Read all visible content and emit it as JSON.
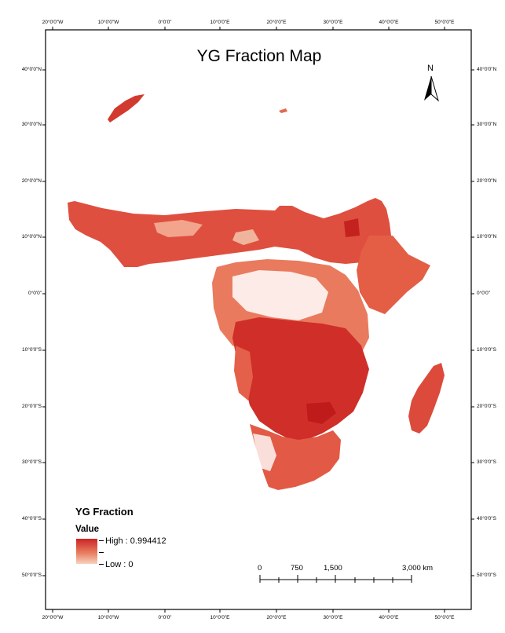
{
  "map": {
    "title": "YG Fraction Map",
    "north_label": "N",
    "top_ticks": [
      "20°0'0\"W",
      "10°0'0\"W",
      "0°0'0\"",
      "10°0'0\"E",
      "20°0'0\"E",
      "30°0'0\"E",
      "40°0'0\"E",
      "50°0'0\"E"
    ],
    "bottom_ticks": [
      "20°0'0\"W",
      "10°0'0\"W",
      "0°0'0\"",
      "10°0'0\"E",
      "20°0'0\"E",
      "30°0'0\"E",
      "40°0'0\"E",
      "50°0'0\"E"
    ],
    "left_ticks": [
      "40°0'0\"N",
      "30°0'0\"N",
      "20°0'0\"N",
      "10°0'0\"N",
      "0°0'0\"",
      "10°0'0\"S",
      "20°0'0\"S",
      "30°0'0\"S",
      "40°0'0\"S",
      "50°0'0\"S"
    ],
    "right_ticks": [
      "40°0'0\"N",
      "30°0'0\"N",
      "20°0'0\"N",
      "10°0'0\"N",
      "0°0'0\"",
      "10°0'0\"S",
      "20°0'0\"S",
      "30°0'0\"S",
      "40°0'0\"S",
      "50°0'0\"S"
    ]
  },
  "legend": {
    "title": "YG Fraction",
    "field": "Value",
    "high_label": "High : 0.994412",
    "low_label": "Low : 0",
    "colors": {
      "high": "#cc2424",
      "mid": "#e77b5e",
      "low": "#f8d2bd"
    }
  },
  "scale_bar": {
    "labels": [
      "0",
      "750",
      "1,500",
      "3,000 km"
    ]
  }
}
